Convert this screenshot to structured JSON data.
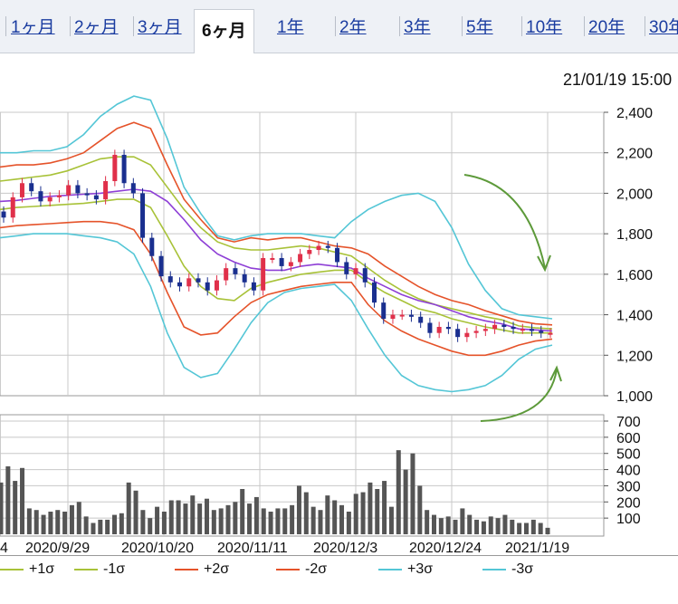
{
  "tabs": {
    "items": [
      {
        "label": "1ヶ月",
        "active": false
      },
      {
        "label": "2ヶ月",
        "active": false
      },
      {
        "label": "3ヶ月",
        "active": false
      },
      {
        "label": "6ヶ月",
        "active": true
      },
      {
        "label": "1年",
        "active": false
      },
      {
        "label": "2年",
        "active": false
      },
      {
        "label": "3年",
        "active": false
      },
      {
        "label": "5年",
        "active": false
      },
      {
        "label": "10年",
        "active": false
      },
      {
        "label": "20年",
        "active": false
      },
      {
        "label": "30年",
        "active": false
      }
    ]
  },
  "header": {
    "timestamp": "21/01/19 15:00"
  },
  "colors": {
    "up": "#e0304a",
    "down": "#1a2f8f",
    "ma": "#8e3fd6",
    "sigma1": "#a8c238",
    "sigma2": "#e5532a",
    "sigma3": "#54c6d6",
    "volume": "#555555",
    "grid": "#c8c8c8",
    "arrow": "#5d9a3a"
  },
  "legend": {
    "items": [
      {
        "label": "+1σ",
        "color": "#a8c238"
      },
      {
        "label": "-1σ",
        "color": "#a8c238"
      },
      {
        "label": "+2σ",
        "color": "#e5532a"
      },
      {
        "label": "-2σ",
        "color": "#e5532a"
      },
      {
        "label": "+3σ",
        "color": "#54c6d6"
      },
      {
        "label": "-3σ",
        "color": "#54c6d6"
      }
    ]
  },
  "chart_data": {
    "type": "candlestick_bollinger_volume",
    "price_ylim": [
      1000,
      2400
    ],
    "price_ticks": [
      "1,000",
      "1,200",
      "1,400",
      "1,600",
      "1,800",
      "2,000",
      "2,200",
      "2,400"
    ],
    "volume_ylim": [
      0,
      700
    ],
    "volume_ticks": [
      "100",
      "200",
      "300",
      "400",
      "500",
      "600",
      "700"
    ],
    "x_tick_labels": [
      "2020/9/29",
      "2020/10/20",
      "2020/11/11",
      "2020/12/3",
      "2020/12/24",
      "2021/1/19"
    ],
    "edge_label": "4",
    "grid": true,
    "series": [
      {
        "name": "ma",
        "values": [
          1960,
          1965,
          1975,
          1985,
          1990,
          1995,
          2000,
          2010,
          2020,
          2010,
          1960,
          1870,
          1770,
          1700,
          1660,
          1630,
          1620,
          1620,
          1640,
          1650,
          1640,
          1630,
          1580,
          1540,
          1500,
          1470,
          1450,
          1420,
          1390,
          1370,
          1355,
          1330,
          1325,
          1320
        ]
      },
      {
        "name": "+1σ",
        "values": [
          2060,
          2070,
          2080,
          2090,
          2110,
          2140,
          2170,
          2180,
          2180,
          2140,
          2030,
          1920,
          1830,
          1760,
          1730,
          1720,
          1720,
          1730,
          1740,
          1730,
          1710,
          1690,
          1630,
          1570,
          1520,
          1480,
          1450,
          1430,
          1410,
          1390,
          1375,
          1345,
          1335,
          1330
        ]
      },
      {
        "name": "-1σ",
        "values": [
          1920,
          1930,
          1935,
          1940,
          1945,
          1950,
          1960,
          1970,
          1970,
          1930,
          1790,
          1640,
          1540,
          1480,
          1470,
          1530,
          1560,
          1580,
          1600,
          1610,
          1620,
          1620,
          1560,
          1510,
          1470,
          1430,
          1410,
          1380,
          1360,
          1340,
          1325,
          1310,
          1310,
          1310
        ]
      },
      {
        "name": "+2σ",
        "values": [
          2130,
          2140,
          2140,
          2150,
          2170,
          2200,
          2260,
          2320,
          2350,
          2320,
          2140,
          1970,
          1870,
          1780,
          1760,
          1780,
          1770,
          1780,
          1780,
          1760,
          1740,
          1730,
          1700,
          1640,
          1590,
          1540,
          1500,
          1470,
          1450,
          1420,
          1395,
          1370,
          1355,
          1350
        ]
      },
      {
        "name": "-2σ",
        "values": [
          1830,
          1840,
          1845,
          1850,
          1855,
          1860,
          1860,
          1850,
          1820,
          1700,
          1510,
          1340,
          1300,
          1310,
          1390,
          1460,
          1500,
          1520,
          1540,
          1550,
          1560,
          1560,
          1450,
          1370,
          1320,
          1280,
          1250,
          1220,
          1200,
          1200,
          1220,
          1250,
          1270,
          1280
        ]
      },
      {
        "name": "+3σ",
        "values": [
          2200,
          2200,
          2210,
          2210,
          2230,
          2290,
          2380,
          2440,
          2480,
          2460,
          2270,
          2030,
          1900,
          1790,
          1770,
          1790,
          1800,
          1800,
          1800,
          1790,
          1780,
          1860,
          1920,
          1960,
          1990,
          2000,
          1960,
          1830,
          1650,
          1520,
          1430,
          1400,
          1390,
          1380
        ]
      },
      {
        "name": "-3σ",
        "values": [
          1780,
          1790,
          1800,
          1800,
          1800,
          1790,
          1780,
          1760,
          1700,
          1540,
          1310,
          1140,
          1090,
          1110,
          1230,
          1360,
          1460,
          1510,
          1530,
          1540,
          1550,
          1470,
          1330,
          1200,
          1100,
          1050,
          1030,
          1020,
          1030,
          1050,
          1100,
          1180,
          1230,
          1250
        ]
      },
      {
        "name": "close",
        "values": [
          1880,
          1980,
          2050,
          2010,
          1960,
          1980,
          1990,
          2040,
          2000,
          1990,
          1970,
          2060,
          2190,
          2050,
          2000,
          1780,
          1690,
          1590,
          1560,
          1540,
          1580,
          1560,
          1520,
          1570,
          1630,
          1600,
          1560,
          1520,
          1680,
          1680,
          1640,
          1660,
          1700,
          1720,
          1740,
          1730,
          1660,
          1600,
          1630,
          1560,
          1460,
          1380,
          1400,
          1400,
          1390,
          1360,
          1310,
          1340,
          1330,
          1290,
          1310,
          1320,
          1330,
          1350,
          1340,
          1330,
          1330,
          1320,
          1310,
          1310
        ]
      },
      {
        "name": "volume",
        "values": [
          320,
          420,
          330,
          410,
          160,
          150,
          120,
          140,
          150,
          140,
          180,
          200,
          110,
          70,
          90,
          90,
          120,
          130,
          320,
          270,
          150,
          100,
          170,
          140,
          210,
          210,
          190,
          240,
          190,
          220,
          150,
          160,
          180,
          200,
          280,
          190,
          230,
          160,
          140,
          160,
          160,
          180,
          300,
          260,
          170,
          150,
          240,
          210,
          180,
          140,
          250,
          260,
          320,
          280,
          330,
          170,
          520,
          400,
          500,
          300,
          150,
          120,
          100,
          110,
          90,
          160,
          120,
          90,
          80,
          110,
          100,
          120,
          90,
          70,
          70,
          90,
          70,
          40
        ]
      }
    ]
  }
}
